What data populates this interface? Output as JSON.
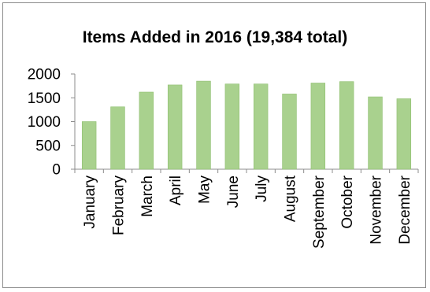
{
  "chart_data": {
    "type": "bar",
    "title": "Items Added in 2016 (19,384 total)",
    "categories": [
      "January",
      "February",
      "March",
      "April",
      "May",
      "June",
      "July",
      "August",
      "September",
      "October",
      "November",
      "December"
    ],
    "values": [
      1000,
      1310,
      1620,
      1770,
      1850,
      1790,
      1790,
      1580,
      1810,
      1840,
      1520,
      1480
    ],
    "yticks": [
      "0",
      "500",
      "1000",
      "1500",
      "2000"
    ],
    "ylim": [
      0,
      2000
    ],
    "xlabel": "",
    "ylabel": "",
    "grid": false,
    "legend": "none",
    "bar_color": "#a9d18e",
    "bar_edge_color": "#8fbf70",
    "axis_color": "#8c8c8c"
  }
}
